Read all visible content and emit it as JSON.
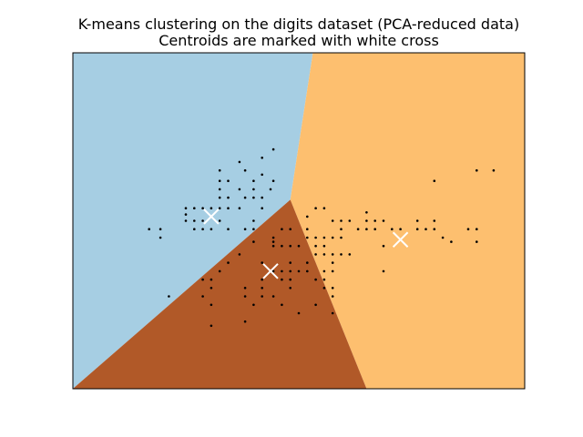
{
  "chart_data": {
    "type": "scatter",
    "title": "K-means clustering on the digits dataset (PCA-reduced data)",
    "subtitle": "Centroids are marked with white cross",
    "xlabel": "",
    "ylabel": "",
    "xlim": [
      -8,
      8
    ],
    "ylim": [
      -8,
      8
    ],
    "xticks_visible": false,
    "yticks_visible": false,
    "grid": false,
    "colors": {
      "region_left": "#a6cee3",
      "region_right": "#fdbf6f",
      "region_bottom": "#b15928",
      "points": "#000000",
      "centroids": "#ffffff"
    },
    "regions": [
      {
        "cluster": 0,
        "color": "#a6cee3",
        "polygon": [
          [
            -8,
            8
          ],
          [
            0.5,
            8
          ],
          [
            -0.3,
            1.0
          ],
          [
            -8,
            -8
          ]
        ]
      },
      {
        "cluster": 1,
        "color": "#fdbf6f",
        "polygon": [
          [
            0.5,
            8
          ],
          [
            8,
            8
          ],
          [
            8,
            -8
          ],
          [
            2.4,
            -8
          ],
          [
            -0.3,
            1.0
          ]
        ]
      },
      {
        "cluster": 2,
        "color": "#b15928",
        "polygon": [
          [
            -0.3,
            1.0
          ],
          [
            2.4,
            -8
          ],
          [
            -8,
            -8
          ]
        ]
      }
    ],
    "centroids": [
      {
        "x": -3.1,
        "y": 0.2
      },
      {
        "x": 3.6,
        "y": -0.9
      },
      {
        "x": -1.0,
        "y": -2.4
      }
    ],
    "points": [
      [
        -5.3,
        -0.4
      ],
      [
        -4.9,
        -0.4
      ],
      [
        -4.9,
        -0.8
      ],
      [
        -4.0,
        0.6
      ],
      [
        -4.0,
        0.3
      ],
      [
        -3.7,
        0.6
      ],
      [
        -3.7,
        0.0
      ],
      [
        -3.4,
        0.6
      ],
      [
        -3.4,
        0.0
      ],
      [
        -3.1,
        0.6
      ],
      [
        -2.8,
        0.6
      ],
      [
        -2.5,
        0.6
      ],
      [
        -2.1,
        0.6
      ],
      [
        -3.1,
        -0.4
      ],
      [
        -2.8,
        0.0
      ],
      [
        -2.8,
        1.1
      ],
      [
        -2.8,
        1.5
      ],
      [
        -2.5,
        1.1
      ],
      [
        -1.9,
        1.1
      ],
      [
        -1.6,
        1.1
      ],
      [
        -1.3,
        1.1
      ],
      [
        -1.3,
        0.6
      ],
      [
        -1.6,
        0.0
      ],
      [
        -2.1,
        1.5
      ],
      [
        -1.6,
        1.5
      ],
      [
        -1.0,
        1.5
      ],
      [
        -1.6,
        1.9
      ],
      [
        -2.5,
        1.9
      ],
      [
        -2.8,
        1.9
      ],
      [
        -2.8,
        2.4
      ],
      [
        -1.9,
        2.4
      ],
      [
        -1.3,
        3.0
      ],
      [
        -2.1,
        2.8
      ],
      [
        -0.9,
        3.4
      ],
      [
        -1.3,
        2.2
      ],
      [
        -0.9,
        1.9
      ],
      [
        -4.0,
        0.0
      ],
      [
        -3.7,
        -0.4
      ],
      [
        -3.4,
        -0.4
      ],
      [
        -2.5,
        -0.4
      ],
      [
        -1.6,
        -0.4
      ],
      [
        -0.6,
        -0.4
      ],
      [
        -0.3,
        -0.4
      ],
      [
        0.3,
        -0.4
      ],
      [
        0.3,
        -0.8
      ],
      [
        -0.9,
        -0.8
      ],
      [
        -0.9,
        -1.2
      ],
      [
        -0.6,
        -1.2
      ],
      [
        -0.3,
        -1.2
      ],
      [
        0.0,
        -1.2
      ],
      [
        0.6,
        -1.2
      ],
      [
        0.9,
        -1.2
      ],
      [
        0.6,
        -0.8
      ],
      [
        0.9,
        -0.8
      ],
      [
        1.2,
        -0.8
      ],
      [
        1.5,
        -0.4
      ],
      [
        1.5,
        -0.8
      ],
      [
        1.2,
        -1.6
      ],
      [
        0.9,
        -1.6
      ],
      [
        0.6,
        -1.6
      ],
      [
        0.3,
        -2.0
      ],
      [
        -0.3,
        -2.0
      ],
      [
        -1.3,
        -2.0
      ],
      [
        -0.9,
        -2.4
      ],
      [
        -0.6,
        -2.4
      ],
      [
        -0.3,
        -2.4
      ],
      [
        0.0,
        -2.4
      ],
      [
        0.3,
        -2.4
      ],
      [
        0.9,
        -2.4
      ],
      [
        1.2,
        -2.4
      ],
      [
        1.2,
        -2.0
      ],
      [
        0.9,
        -2.8
      ],
      [
        0.6,
        -2.8
      ],
      [
        -1.3,
        -2.8
      ],
      [
        -0.6,
        -2.8
      ],
      [
        -0.3,
        -2.8
      ],
      [
        -0.3,
        -3.2
      ],
      [
        0.9,
        -3.2
      ],
      [
        1.2,
        -3.2
      ],
      [
        -1.3,
        -3.2
      ],
      [
        -1.9,
        -3.2
      ],
      [
        -1.9,
        -3.6
      ],
      [
        -1.3,
        -3.6
      ],
      [
        -0.9,
        -3.6
      ],
      [
        -1.6,
        -4.0
      ],
      [
        -0.6,
        -4.0
      ],
      [
        0.6,
        -4.0
      ],
      [
        1.2,
        -4.4
      ],
      [
        0.0,
        -4.4
      ],
      [
        1.2,
        -3.6
      ],
      [
        -1.9,
        -4.8
      ],
      [
        -3.1,
        -3.2
      ],
      [
        -3.1,
        -4.0
      ],
      [
        -3.1,
        -2.8
      ],
      [
        -2.8,
        -2.4
      ],
      [
        -3.4,
        -2.8
      ],
      [
        -3.4,
        -3.6
      ],
      [
        -3.1,
        -5.0
      ],
      [
        -4.6,
        -3.6
      ],
      [
        -2.5,
        -2.0
      ],
      [
        -2.1,
        -1.6
      ],
      [
        -1.9,
        -0.4
      ],
      [
        -1.6,
        -1.0
      ],
      [
        -0.9,
        -1.0
      ],
      [
        0.3,
        0.2
      ],
      [
        0.6,
        0.6
      ],
      [
        0.9,
        0.6
      ],
      [
        1.2,
        0.0
      ],
      [
        1.5,
        0.0
      ],
      [
        1.8,
        0.0
      ],
      [
        2.1,
        -0.4
      ],
      [
        2.4,
        -0.4
      ],
      [
        2.7,
        -0.4
      ],
      [
        2.7,
        0.0
      ],
      [
        2.4,
        0.4
      ],
      [
        3.0,
        0.0
      ],
      [
        3.3,
        -0.4
      ],
      [
        3.6,
        -0.4
      ],
      [
        4.2,
        -0.4
      ],
      [
        4.5,
        -0.4
      ],
      [
        4.8,
        -0.4
      ],
      [
        5.1,
        -0.8
      ],
      [
        4.2,
        0.0
      ],
      [
        4.8,
        0.0
      ],
      [
        5.4,
        -1.0
      ],
      [
        6.0,
        -0.4
      ],
      [
        6.3,
        -0.4
      ],
      [
        6.3,
        -1.0
      ],
      [
        6.3,
        2.4
      ],
      [
        6.9,
        2.4
      ],
      [
        4.8,
        1.9
      ],
      [
        2.4,
        0.0
      ],
      [
        1.5,
        -1.6
      ],
      [
        1.8,
        -1.6
      ],
      [
        3.0,
        -2.4
      ],
      [
        3.0,
        -1.2
      ],
      [
        3.6,
        -0.9
      ]
    ]
  }
}
